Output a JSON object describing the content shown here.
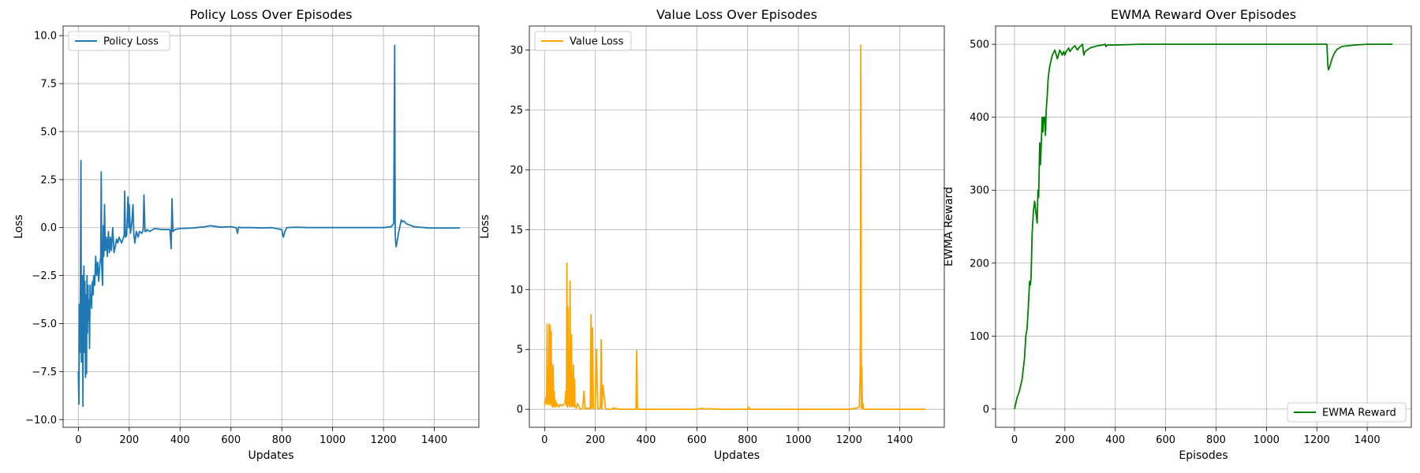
{
  "chart_data": [
    {
      "type": "line",
      "title": "Policy Loss Over Episodes",
      "xlabel": "Updates",
      "ylabel": "Loss",
      "xlim": [
        -60,
        1575
      ],
      "ylim": [
        -10.4,
        10.5
      ],
      "xticks": [
        0,
        200,
        400,
        600,
        800,
        1000,
        1200,
        1400
      ],
      "xtick_labels": [
        "0",
        "200",
        "400",
        "600",
        "800",
        "1000",
        "1200",
        "1400"
      ],
      "yticks": [
        -10,
        -7.5,
        -5,
        -2.5,
        0,
        2.5,
        5,
        7.5,
        10
      ],
      "ytick_labels": [
        "−10.0",
        "−7.5",
        "−5.0",
        "−2.5",
        "0.0",
        "2.5",
        "5.0",
        "7.5",
        "10.0"
      ],
      "grid": true,
      "legend_position": "top-left",
      "series": [
        {
          "name": "Policy Loss",
          "color": "#1f77b4",
          "x": [
            0,
            2,
            4,
            6,
            8,
            10,
            12,
            14,
            16,
            18,
            20,
            22,
            24,
            26,
            28,
            30,
            32,
            34,
            36,
            38,
            40,
            42,
            44,
            46,
            48,
            50,
            52,
            54,
            56,
            58,
            60,
            64,
            68,
            72,
            76,
            80,
            84,
            88,
            90,
            92,
            95,
            98,
            100,
            103,
            106,
            110,
            114,
            118,
            122,
            126,
            130,
            135,
            140,
            145,
            150,
            155,
            160,
            170,
            180,
            182,
            185,
            190,
            195,
            198,
            200,
            205,
            210,
            215,
            218,
            222,
            228,
            235,
            240,
            250,
            255,
            258,
            262,
            265,
            270,
            280,
            300,
            330,
            360,
            365,
            368,
            372,
            380,
            400,
            450,
            500,
            520,
            560,
            600,
            620,
            626,
            630,
            640,
            680,
            720,
            760,
            800,
            806,
            812,
            820,
            860,
            900,
            1000,
            1100,
            1200,
            1230,
            1240,
            1244,
            1246,
            1248,
            1250,
            1255,
            1260,
            1265,
            1270,
            1275,
            1280,
            1290,
            1300,
            1320,
            1340,
            1360,
            1380,
            1400,
            1450,
            1500
          ],
          "y": [
            -7.5,
            -9.2,
            -4,
            -6.5,
            -3,
            3.5,
            -7,
            -4,
            -2.5,
            -9.3,
            -3,
            -2,
            -6.5,
            -2.8,
            -7.8,
            -3.5,
            -7.6,
            -2.5,
            -5.5,
            -3,
            -4.8,
            -3.8,
            -6.3,
            -3,
            -4,
            -3.5,
            -4.2,
            -3,
            -2.8,
            -3.5,
            -2.5,
            -3,
            -1.5,
            -2.5,
            -1.8,
            -2.8,
            -2,
            -1.5,
            2.9,
            -2,
            -3,
            0.1,
            -1.5,
            1.2,
            -1.2,
            -0.5,
            -1.5,
            -0.2,
            -1.3,
            -0.5,
            -1.2,
            0,
            -1.3,
            -1,
            -0.6,
            -0.8,
            -0.5,
            -0.8,
            -0.4,
            1.9,
            -0.5,
            -0.4,
            1.6,
            0,
            1.2,
            -0.3,
            0.2,
            1.2,
            -0.3,
            -0.8,
            -0.2,
            -0.5,
            -0.2,
            -0.3,
            -0.1,
            1.7,
            -0.2,
            -0.2,
            -0.1,
            -0.2,
            -0.05,
            -0.1,
            -0.1,
            -1.1,
            1.5,
            -0.2,
            -0.1,
            -0.05,
            -0.02,
            0.05,
            0.1,
            0.02,
            0.05,
            0,
            -0.3,
            0.02,
            0,
            0,
            -0.02,
            0,
            -0.1,
            -0.5,
            -0.2,
            0,
            0.02,
            0,
            0,
            0,
            0,
            0.05,
            0.2,
            9.5,
            -0.4,
            -0.8,
            -1,
            -0.6,
            -0.2,
            0.1,
            0.4,
            0.3,
            0.35,
            0.2,
            0.15,
            0.05,
            0.02,
            0,
            -0.02,
            -0.02,
            -0.02,
            -0.02
          ]
        }
      ]
    },
    {
      "type": "line",
      "title": "Value Loss Over Episodes",
      "xlabel": "Updates",
      "ylabel": "Loss",
      "xlim": [
        -60,
        1575
      ],
      "ylim": [
        -1.5,
        32
      ],
      "xticks": [
        0,
        200,
        400,
        600,
        800,
        1000,
        1200,
        1400
      ],
      "xtick_labels": [
        "0",
        "200",
        "400",
        "600",
        "800",
        "1000",
        "1200",
        "1400"
      ],
      "yticks": [
        0,
        5,
        10,
        15,
        20,
        25,
        30
      ],
      "ytick_labels": [
        "0",
        "5",
        "10",
        "15",
        "20",
        "25",
        "30"
      ],
      "grid": true,
      "legend_position": "top-left",
      "series": [
        {
          "name": "Value Loss",
          "color": "#ffa500",
          "x": [
            0,
            4,
            6,
            8,
            10,
            12,
            14,
            16,
            18,
            20,
            22,
            24,
            26,
            28,
            30,
            32,
            34,
            36,
            38,
            40,
            42,
            44,
            48,
            52,
            56,
            60,
            70,
            80,
            84,
            86,
            88,
            90,
            92,
            94,
            96,
            98,
            100,
            103,
            106,
            108,
            110,
            112,
            114,
            116,
            118,
            120,
            125,
            130,
            140,
            150,
            155,
            160,
            165,
            170,
            175,
            180,
            183,
            186,
            189,
            192,
            195,
            200,
            204,
            210,
            215,
            220,
            223,
            226,
            230,
            240,
            250,
            260,
            263,
            266,
            270,
            300,
            340,
            360,
            363,
            366,
            370,
            400,
            500,
            600,
            620,
            630,
            640,
            700,
            800,
            802,
            810,
            900,
            1000,
            1100,
            1200,
            1230,
            1240,
            1244,
            1246,
            1248,
            1250,
            1252,
            1254,
            1256,
            1260,
            1300,
            1400,
            1500
          ],
          "y": [
            0.3,
            0.8,
            1,
            0.5,
            7.1,
            0.4,
            3.5,
            0.6,
            7.1,
            0.4,
            7,
            0.5,
            6.5,
            0.3,
            3.5,
            0.2,
            3.7,
            0.2,
            1.5,
            0.3,
            0.8,
            0.2,
            0.5,
            0.3,
            0.2,
            0.4,
            0.3,
            0.5,
            1.5,
            0.3,
            12.2,
            0.2,
            8.5,
            0.4,
            5,
            0.2,
            10.7,
            0.3,
            6.2,
            0.2,
            3,
            0.3,
            3.7,
            0.2,
            2.5,
            0.3,
            0.1,
            0.5,
            0,
            0.1,
            1.5,
            0,
            0.1,
            0.05,
            0.1,
            0.05,
            7.9,
            0.1,
            6.8,
            0.1,
            0.05,
            0.1,
            5,
            0.05,
            0.05,
            0.1,
            5.8,
            0.05,
            2,
            0.05,
            0,
            0,
            0,
            0,
            0.1,
            0,
            0,
            0,
            4.9,
            0.05,
            0,
            0,
            0,
            0,
            0.1,
            0,
            0.05,
            0,
            0,
            0.2,
            0,
            0,
            0,
            0,
            0,
            0.1,
            0.2,
            3.5,
            30.4,
            0.1,
            3.5,
            0.1,
            0.5,
            0.05,
            0,
            0,
            0,
            0
          ]
        }
      ]
    },
    {
      "type": "line",
      "title": "EWMA Reward Over Episodes",
      "xlabel": "Episodes",
      "ylabel": "EWMA Reward",
      "xlim": [
        -75,
        1575
      ],
      "ylim": [
        -25,
        525
      ],
      "xticks": [
        0,
        200,
        400,
        600,
        800,
        1000,
        1200,
        1400
      ],
      "xtick_labels": [
        "0",
        "200",
        "400",
        "600",
        "800",
        "1000",
        "1200",
        "1400"
      ],
      "yticks": [
        0,
        100,
        200,
        300,
        400,
        500
      ],
      "ytick_labels": [
        "0",
        "100",
        "200",
        "300",
        "400",
        "500"
      ],
      "grid": true,
      "legend_position": "bottom-right",
      "series": [
        {
          "name": "EWMA Reward",
          "color": "#008000",
          "x": [
            0,
            10,
            20,
            30,
            40,
            45,
            50,
            55,
            60,
            63,
            66,
            70,
            75,
            80,
            85,
            90,
            93,
            96,
            100,
            103,
            106,
            110,
            113,
            116,
            120,
            123,
            126,
            130,
            133,
            136,
            140,
            150,
            160,
            170,
            180,
            190,
            195,
            200,
            205,
            210,
            215,
            220,
            230,
            240,
            250,
            260,
            265,
            270,
            275,
            280,
            300,
            330,
            350,
            360,
            363,
            370,
            400,
            500,
            600,
            700,
            800,
            900,
            1000,
            1100,
            1200,
            1240,
            1242,
            1244,
            1246,
            1250,
            1260,
            1270,
            1280,
            1300,
            1350,
            1400,
            1500
          ],
          "y": [
            0,
            15,
            25,
            40,
            70,
            100,
            110,
            140,
            175,
            170,
            180,
            240,
            270,
            285,
            270,
            255,
            300,
            290,
            365,
            335,
            360,
            400,
            380,
            400,
            400,
            375,
            410,
            430,
            450,
            460,
            470,
            485,
            492,
            480,
            492,
            485,
            490,
            485,
            490,
            492,
            495,
            490,
            495,
            498,
            492,
            497,
            498,
            500,
            485,
            490,
            495,
            498,
            499,
            500,
            497,
            499,
            499,
            500,
            500,
            500,
            500,
            500,
            500,
            500,
            500,
            500,
            485,
            470,
            465,
            468,
            480,
            488,
            493,
            497,
            499,
            500,
            500
          ]
        }
      ]
    }
  ]
}
